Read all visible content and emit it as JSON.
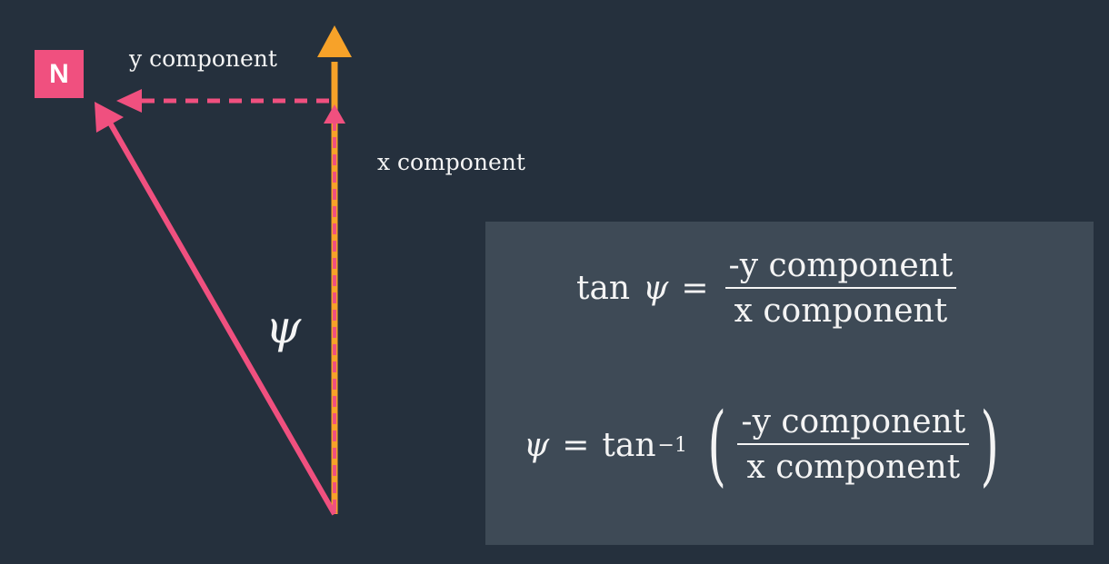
{
  "north_badge": "N",
  "labels": {
    "y_component": "y component",
    "x_component": "x component",
    "angle_symbol": "ψ"
  },
  "formula": {
    "line1": {
      "lhs_fn": "tan",
      "lhs_var": "ψ",
      "equals": "=",
      "numerator": "-y component",
      "denominator": "x component"
    },
    "line2": {
      "lhs_var": "ψ",
      "equals": "=",
      "fn": "tan",
      "exponent": "−1",
      "left_paren": "(",
      "right_paren": ")",
      "numerator": "-y component",
      "denominator": "x component"
    }
  },
  "colors": {
    "background": "#25303d",
    "formula_box": "#3e4a56",
    "pink": "#f0507f",
    "orange": "#f7a229",
    "text": "#f4f4f4"
  }
}
